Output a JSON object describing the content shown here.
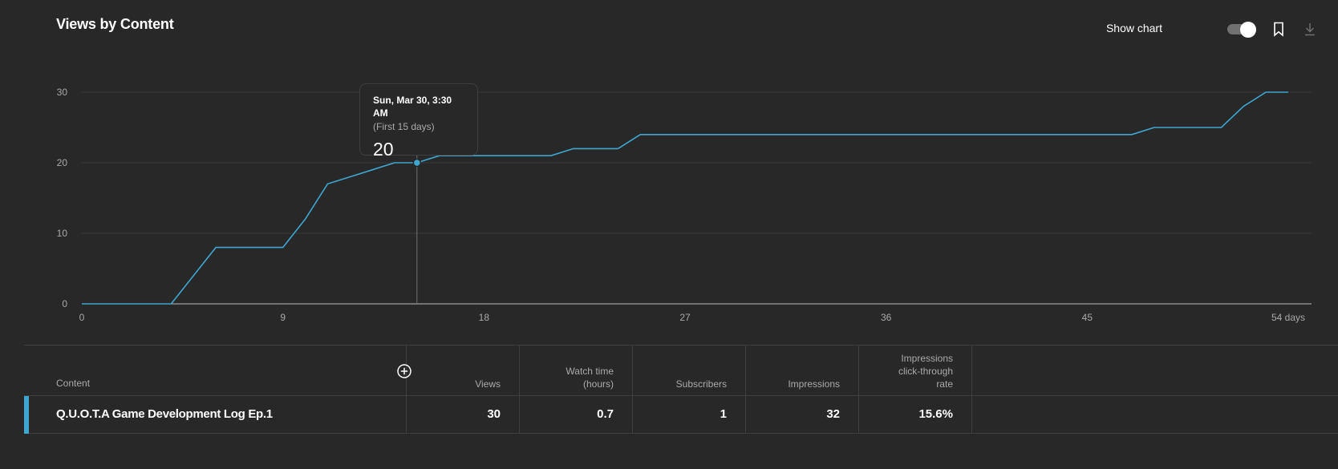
{
  "card": {
    "title": "Views by Content"
  },
  "toolbar": {
    "show_chart_label": "Show chart",
    "show_chart_enabled": true,
    "bookmark_icon": "bookmark-icon",
    "download_icon": "download-icon"
  },
  "chart_data": {
    "type": "line",
    "title": "",
    "xlabel": "",
    "ylabel": "",
    "x_ticks": [
      "0",
      "9",
      "18",
      "27",
      "36",
      "45",
      "54 days"
    ],
    "y_ticks": [
      "0",
      "10",
      "20",
      "30"
    ],
    "xlim": [
      0,
      54
    ],
    "ylim": [
      0,
      30
    ],
    "grid": true,
    "series": [
      {
        "color": "#3ea6d0",
        "x": [
          0,
          1,
          2,
          3,
          4,
          5,
          6,
          7,
          8,
          9,
          10,
          11,
          12,
          13,
          14,
          15,
          16,
          17,
          18,
          19,
          20,
          21,
          22,
          23,
          24,
          25,
          26,
          27,
          28,
          29,
          30,
          31,
          32,
          33,
          34,
          35,
          36,
          37,
          38,
          39,
          40,
          41,
          42,
          43,
          44,
          45,
          46,
          47,
          48,
          49,
          50,
          51,
          52,
          53,
          54
        ],
        "y": [
          0,
          0,
          0,
          0,
          0,
          4,
          8,
          8,
          8,
          8,
          12,
          17,
          18,
          19,
          20,
          20,
          21,
          21,
          21,
          21,
          21,
          21,
          22,
          22,
          22,
          24,
          24,
          24,
          24,
          24,
          24,
          24,
          24,
          24,
          24,
          24,
          24,
          24,
          24,
          24,
          24,
          24,
          24,
          24,
          24,
          24,
          24,
          24,
          25,
          25,
          25,
          25,
          28,
          30,
          30
        ]
      }
    ],
    "highlight": {
      "x": 15,
      "y": 20,
      "date": "Sun, Mar 30, 3:30 AM",
      "note": "(First 15 days)",
      "value": "20"
    }
  },
  "table": {
    "columns": {
      "content": "Content",
      "views": "Views",
      "watch_time_1": "Watch time",
      "watch_time_2": "(hours)",
      "subscribers": "Subscribers",
      "impressions": "Impressions",
      "ctr_1": "Impressions",
      "ctr_2": "click-through",
      "ctr_3": "rate"
    },
    "rows": [
      {
        "title": "Q.U.O.T.A Game Development Log Ep.1",
        "views": "30",
        "watch_time": "0.7",
        "subscribers": "1",
        "impressions": "32",
        "ctr": "15.6%",
        "accent_color": "#3ea6d0"
      }
    ],
    "add_column_icon": "add-circle-icon"
  }
}
